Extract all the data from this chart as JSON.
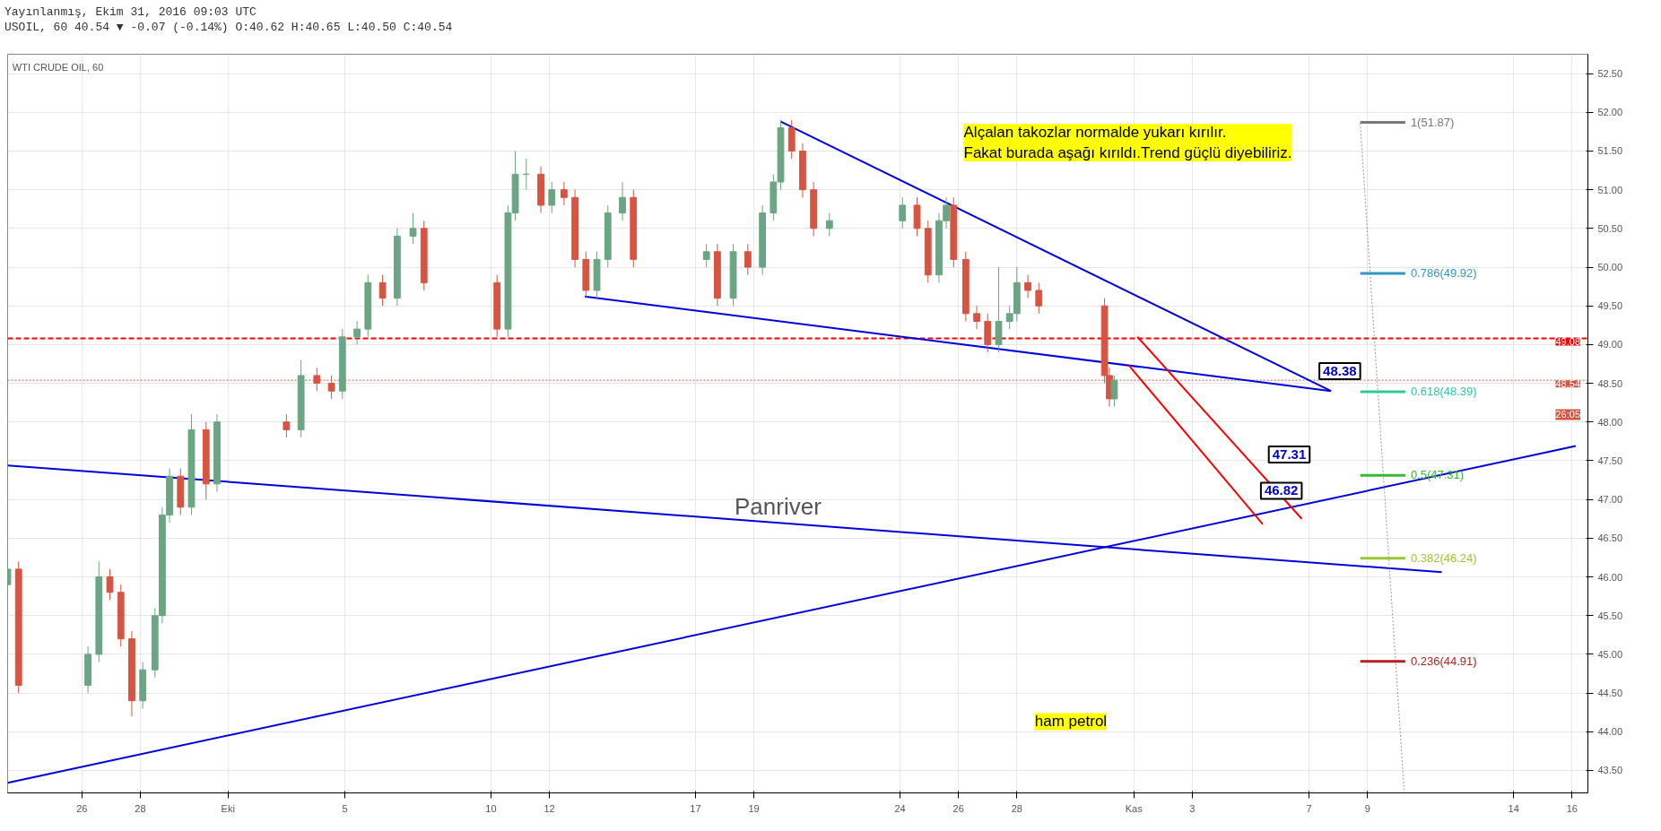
{
  "chart_data": {
    "type": "candlestick",
    "annotations": [
      "Yayınlanmış, Ekim 31, 2016 09:03 UTC",
      "USOIL, 60 40.54 ▼ -0.07 (-0.14%) O:40.62 H:40.65 L:40.50 C:40.54",
      "WTI CRUDE OIL, 60",
      "Alçalan takozlar normalde yukarı kırılır.\nFakat burada aşağı kırıldı.Trend güçlü diyebiliriz.",
      "ham petrol",
      "Panriver",
      "26:05",
      "48.38",
      "47.31",
      "46.82"
    ],
    "x": [
      "2016-09-23T11:00",
      "2016-09-23T20:00",
      "2016-09-26T05:00",
      "2016-09-26T14:00",
      "2016-09-26T23:00",
      "2016-09-27T08:00",
      "2016-09-27T17:00",
      "2016-09-28T02:00",
      "2016-09-28T12:00",
      "2016-09-28T18:00",
      "2016-09-29T00:00",
      "2016-09-29T09:00",
      "2016-09-29T18:00",
      "2016-09-30T06:00",
      "2016-09-30T15:00",
      "2016-10-03T00:00",
      "2016-10-03T12:00",
      "2016-10-04T01:00",
      "2016-10-04T13:00",
      "2016-10-04T22:00",
      "2016-10-05T10:00",
      "2016-10-05T19:00",
      "2016-10-06T07:00",
      "2016-10-06T19:00",
      "2016-10-07T08:00",
      "2016-10-07T17:00",
      "2016-10-10T05:00",
      "2016-10-10T14:00",
      "2016-10-10T20:00",
      "2016-10-11T05:00",
      "2016-10-11T17:00",
      "2016-10-12T02:00",
      "2016-10-12T12:00",
      "2016-10-12T21:00",
      "2016-10-13T06:00",
      "2016-10-13T15:00",
      "2016-10-14T00:00",
      "2016-10-14T12:00",
      "2016-10-14T21:00",
      "2016-10-17T09:00",
      "2016-10-17T18:00",
      "2016-10-18T07:00",
      "2016-10-18T19:00",
      "2016-10-19T07:00",
      "2016-10-19T16:00",
      "2016-10-19T22:00",
      "2016-10-20T07:00",
      "2016-10-20T16:00",
      "2016-10-21T01:00",
      "2016-10-21T14:00",
      "2016-10-24T02:00",
      "2016-10-24T14:00",
      "2016-10-24T23:00",
      "2016-10-25T08:00",
      "2016-10-25T14:00",
      "2016-10-25T20:00",
      "2016-10-26T06:00",
      "2016-10-26T15:00",
      "2016-10-27T00:00",
      "2016-10-27T09:00",
      "2016-10-27T18:00",
      "2016-10-28T00:00",
      "2016-10-28T09:00",
      "2016-10-28T18:00",
      "2016-10-31T00:00",
      "2016-10-31T04:00",
      "2016-10-31T08:00"
    ],
    "ohlc": [
      [
        45.9,
        46.2,
        45.8,
        46.1
      ],
      [
        46.1,
        46.2,
        44.5,
        44.6
      ],
      [
        44.6,
        45.1,
        44.5,
        45.0
      ],
      [
        45.0,
        46.2,
        44.9,
        46.0
      ],
      [
        46.0,
        46.1,
        45.7,
        45.8
      ],
      [
        45.8,
        45.9,
        45.1,
        45.2
      ],
      [
        45.2,
        45.3,
        44.2,
        44.4
      ],
      [
        44.4,
        44.9,
        44.3,
        44.8
      ],
      [
        44.8,
        45.6,
        44.7,
        45.5
      ],
      [
        45.5,
        46.9,
        45.4,
        46.8
      ],
      [
        46.8,
        47.4,
        46.7,
        47.3
      ],
      [
        47.3,
        47.4,
        46.8,
        46.9
      ],
      [
        46.9,
        48.1,
        46.8,
        47.9
      ],
      [
        47.9,
        48.0,
        47.0,
        47.2
      ],
      [
        47.2,
        48.1,
        47.1,
        48.0
      ],
      [
        48.0,
        48.1,
        47.8,
        47.9
      ],
      [
        47.9,
        48.8,
        47.8,
        48.6
      ],
      [
        48.6,
        48.7,
        48.4,
        48.5
      ],
      [
        48.5,
        48.6,
        48.3,
        48.4
      ],
      [
        48.4,
        49.2,
        48.3,
        49.1
      ],
      [
        49.1,
        49.3,
        49.0,
        49.2
      ],
      [
        49.2,
        49.9,
        49.1,
        49.8
      ],
      [
        49.8,
        49.9,
        49.5,
        49.6
      ],
      [
        49.6,
        50.5,
        49.5,
        50.4
      ],
      [
        50.4,
        50.7,
        50.3,
        50.5
      ],
      [
        50.5,
        50.6,
        49.7,
        49.8
      ],
      [
        49.8,
        49.9,
        49.1,
        49.2
      ],
      [
        49.2,
        50.8,
        49.1,
        50.7
      ],
      [
        50.7,
        51.5,
        50.6,
        51.2
      ],
      [
        51.2,
        51.4,
        51.0,
        51.2
      ],
      [
        51.2,
        51.3,
        50.7,
        50.8
      ],
      [
        50.8,
        51.1,
        50.7,
        51.0
      ],
      [
        51.0,
        51.1,
        50.8,
        50.9
      ],
      [
        50.9,
        51.0,
        50.0,
        50.1
      ],
      [
        50.1,
        50.2,
        49.6,
        49.7
      ],
      [
        49.7,
        50.2,
        49.6,
        50.1
      ],
      [
        50.1,
        50.8,
        50.0,
        50.7
      ],
      [
        50.7,
        51.1,
        50.6,
        50.9
      ],
      [
        50.9,
        51.0,
        50.0,
        50.1
      ],
      [
        50.1,
        50.3,
        50.0,
        50.2
      ],
      [
        50.2,
        50.3,
        49.5,
        49.6
      ],
      [
        49.6,
        50.3,
        49.5,
        50.2
      ],
      [
        50.2,
        50.3,
        49.9,
        50.0
      ],
      [
        50.0,
        50.8,
        49.9,
        50.7
      ],
      [
        50.7,
        51.2,
        50.6,
        51.1
      ],
      [
        51.1,
        51.9,
        51.0,
        51.8
      ],
      [
        51.8,
        51.9,
        51.4,
        51.5
      ],
      [
        51.5,
        51.6,
        50.9,
        51.0
      ],
      [
        51.0,
        51.1,
        50.4,
        50.5
      ],
      [
        50.5,
        50.7,
        50.4,
        50.6
      ],
      [
        50.6,
        50.9,
        50.5,
        50.8
      ],
      [
        50.8,
        50.9,
        50.4,
        50.5
      ],
      [
        50.5,
        50.6,
        49.8,
        49.9
      ],
      [
        49.9,
        50.7,
        49.8,
        50.6
      ],
      [
        50.6,
        50.9,
        50.5,
        50.8
      ],
      [
        50.8,
        50.9,
        50.0,
        50.1
      ],
      [
        50.1,
        50.2,
        49.3,
        49.4
      ],
      [
        49.4,
        49.5,
        49.2,
        49.3
      ],
      [
        49.3,
        49.4,
        48.9,
        49.0
      ],
      [
        49.0,
        50.0,
        48.9,
        49.3
      ],
      [
        49.3,
        49.5,
        49.2,
        49.4
      ],
      [
        49.4,
        50.0,
        49.3,
        49.8
      ],
      [
        49.8,
        49.9,
        49.6,
        49.7
      ],
      [
        49.7,
        49.8,
        49.4,
        49.5
      ],
      [
        49.5,
        49.6,
        48.5,
        48.6
      ],
      [
        48.6,
        48.7,
        48.2,
        48.3
      ],
      [
        48.3,
        48.6,
        48.2,
        48.54
      ]
    ],
    "colors": [
      "#6ba583",
      "#d75442",
      "#6ba583",
      "#6ba583",
      "#d75442",
      "#d75442",
      "#d75442",
      "#6ba583",
      "#6ba583",
      "#6ba583",
      "#6ba583",
      "#d75442",
      "#6ba583",
      "#d75442",
      "#6ba583",
      "#d75442",
      "#6ba583",
      "#d75442",
      "#d75442",
      "#6ba583",
      "#6ba583",
      "#6ba583",
      "#d75442",
      "#6ba583",
      "#6ba583",
      "#d75442",
      "#d75442",
      "#6ba583",
      "#6ba583",
      "#6ba583",
      "#d75442",
      "#6ba583",
      "#d75442",
      "#d75442",
      "#d75442",
      "#6ba583",
      "#6ba583",
      "#6ba583",
      "#d75442",
      "#6ba583",
      "#d75442",
      "#6ba583",
      "#d75442",
      "#6ba583",
      "#6ba583",
      "#6ba583",
      "#d75442",
      "#d75442",
      "#d75442",
      "#6ba583",
      "#6ba583",
      "#d75442",
      "#d75442",
      "#6ba583",
      "#6ba583",
      "#d75442",
      "#d75442",
      "#d75442",
      "#d75442",
      "#6ba583",
      "#6ba583",
      "#6ba583",
      "#d75442",
      "#d75442",
      "#d75442",
      "#d75442",
      "#6ba583"
    ],
    "series": [
      {
        "type": "line",
        "color": "#0000dd",
        "x": [
          "2016-10-19T22:00",
          "2016-11-07T18:00"
        ],
        "values": [
          51.88,
          48.4
        ]
      },
      {
        "type": "line",
        "color": "#0000dd",
        "x": [
          "2016-10-13T05:00",
          "2016-11-07T18:00"
        ],
        "values": [
          49.62,
          48.4
        ]
      },
      {
        "type": "line",
        "color": "#0000dd",
        "x": [
          "2016-09-23T11:00",
          "2016-11-11T13:00"
        ],
        "values": [
          47.44,
          46.06
        ]
      },
      {
        "type": "line",
        "color": "#0000dd",
        "x": [
          "2016-09-23T11:00",
          "2016-11-16T03:00"
        ],
        "values": [
          43.34,
          47.69
        ]
      },
      {
        "type": "line",
        "color": "#ff0000",
        "x": [
          "2016-11-01T03:00",
          "2016-11-06T18:00"
        ],
        "values": [
          49.1,
          46.75
        ]
      },
      {
        "type": "line",
        "color": "#ff0000",
        "x": [
          "2016-10-31T20:00",
          "2016-11-05T10:00"
        ],
        "values": [
          48.73,
          46.68
        ]
      },
      {
        "type": "line",
        "color": "#999999",
        "line_style": "dotted",
        "x": [
          "2016-11-08T18:00",
          "2016-11-10T06:00"
        ],
        "values": [
          51.86,
          43.25
        ]
      },
      {
        "type": "line",
        "name": "1(51.87)",
        "color": "#787878",
        "x": [
          "2016-11-08T18:00",
          "2016-11-10T07:00"
        ],
        "values": [
          51.87,
          51.87
        ]
      },
      {
        "type": "line",
        "name": "0.786(49.92)",
        "color": "#3296c8",
        "x": [
          "2016-11-08T18:00",
          "2016-11-10T07:00"
        ],
        "values": [
          49.92,
          49.92
        ]
      },
      {
        "type": "line",
        "name": "0.618(48.39)",
        "color": "#2ec99a",
        "x": [
          "2016-11-08T18:00",
          "2016-11-10T07:00"
        ],
        "values": [
          48.39,
          48.39
        ]
      },
      {
        "type": "line",
        "name": "0.5(47.31)",
        "color": "#33bb33",
        "x": [
          "2016-11-08T18:00",
          "2016-11-10T07:00"
        ],
        "values": [
          47.31,
          47.31
        ]
      },
      {
        "type": "line",
        "name": "0.382(46.24)",
        "color": "#99c833",
        "x": [
          "2016-11-08T18:00",
          "2016-11-10T07:00"
        ],
        "values": [
          46.24,
          46.24
        ]
      },
      {
        "type": "line",
        "name": "0.236(44.91)",
        "color": "#b22222",
        "x": [
          "2016-11-08T18:00",
          "2016-11-10T07:00"
        ],
        "values": [
          44.91,
          44.91
        ]
      }
    ],
    "ref_lines": [
      {
        "axis": "y",
        "value": 49.08,
        "label": "49.08",
        "color": "#ff0000",
        "line_style": "dashed"
      },
      {
        "axis": "y",
        "value": 48.54,
        "label": "48.54",
        "color": "#d75442",
        "line_style": "dotted"
      }
    ],
    "xlim": [
      "2016-09-23T11:00",
      "2016-11-16T13:00"
    ],
    "xticks": [
      {
        "value": "2016-09-26",
        "label": "26"
      },
      {
        "value": "2016-09-28",
        "label": "28"
      },
      {
        "value": "2016-10-01",
        "label": "Eki"
      },
      {
        "value": "2016-10-05",
        "label": "5"
      },
      {
        "value": "2016-10-10",
        "label": "10"
      },
      {
        "value": "2016-10-12",
        "label": "12"
      },
      {
        "value": "2016-10-17",
        "label": "17"
      },
      {
        "value": "2016-10-19",
        "label": "19"
      },
      {
        "value": "2016-10-24",
        "label": "24"
      },
      {
        "value": "2016-10-26",
        "label": "26"
      },
      {
        "value": "2016-10-28",
        "label": "28"
      },
      {
        "value": "2016-11-01",
        "label": "Kas"
      },
      {
        "value": "2016-11-03",
        "label": "3"
      },
      {
        "value": "2016-11-07",
        "label": "7"
      },
      {
        "value": "2016-11-09",
        "label": "9"
      },
      {
        "value": "2016-11-14",
        "label": "14"
      },
      {
        "value": "2016-11-16",
        "label": "16"
      }
    ],
    "ylim": [
      43.21,
      52.75
    ],
    "yticks": [
      {
        "value": 43.5,
        "label": "43.50"
      },
      {
        "value": 44,
        "label": "44.00"
      },
      {
        "value": 44.5,
        "label": "44.50"
      },
      {
        "value": 45,
        "label": "45.00"
      },
      {
        "value": 45.5,
        "label": "45.50"
      },
      {
        "value": 46,
        "label": "46.00"
      },
      {
        "value": 46.5,
        "label": "46.50"
      },
      {
        "value": 47,
        "label": "47.00"
      },
      {
        "value": 47.5,
        "label": "47.50"
      },
      {
        "value": 48,
        "label": "48.00"
      },
      {
        "value": 48.5,
        "label": "48.50"
      },
      {
        "value": 49,
        "label": "49.00"
      },
      {
        "value": 49.5,
        "label": "49.50"
      },
      {
        "value": 50,
        "label": "50.00"
      },
      {
        "value": 50.5,
        "label": "50.50"
      },
      {
        "value": 51,
        "label": "51.00"
      },
      {
        "value": 51.5,
        "label": "51.50"
      },
      {
        "value": 52,
        "label": "52.00"
      },
      {
        "value": 52.5,
        "label": "52.50"
      }
    ],
    "grid": true
  }
}
